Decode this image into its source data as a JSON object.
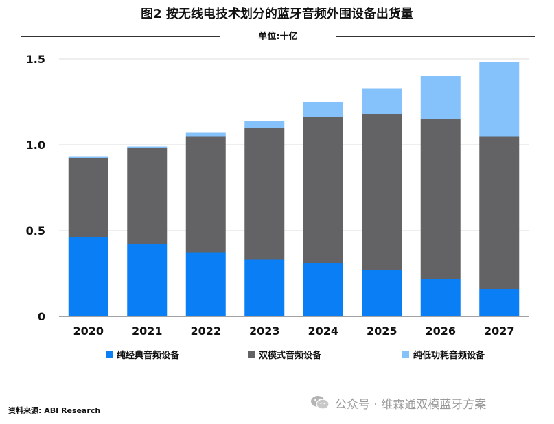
{
  "title": "图2 按无线电技术划分的蓝牙音频外围设备出货量",
  "unit": "单位:十亿",
  "source": "资料来源: ABI Research",
  "watermark": "公众号 · 维霖通双模蓝牙方案",
  "colors": {
    "series1": "#0a7ff5",
    "series2": "#636366",
    "series3": "#85c1fa",
    "grid": "#dcdcdc",
    "text": "#111111"
  },
  "chart_data": {
    "type": "bar",
    "stacked": true,
    "title": "图2 按无线电技术划分的蓝牙音频外围设备出货量",
    "ylabel": "单位:十亿",
    "xlabel": "",
    "ylim": [
      0,
      1.5
    ],
    "yticks": [
      0,
      0.5,
      1.0,
      1.5
    ],
    "ytick_labels": [
      "0",
      "0.5",
      "1.0",
      "1.5"
    ],
    "grid": true,
    "legend_position": "bottom",
    "categories": [
      "2020",
      "2021",
      "2022",
      "2023",
      "2024",
      "2025",
      "2026",
      "2027"
    ],
    "series": [
      {
        "name": "纯经典音频设备",
        "color": "#0a7ff5",
        "values": [
          0.46,
          0.42,
          0.37,
          0.33,
          0.31,
          0.27,
          0.22,
          0.16
        ]
      },
      {
        "name": "双模式音频设备",
        "color": "#636366",
        "values": [
          0.46,
          0.56,
          0.68,
          0.77,
          0.85,
          0.91,
          0.93,
          0.89
        ]
      },
      {
        "name": "纯低功耗音频设备",
        "color": "#85c1fa",
        "values": [
          0.01,
          0.01,
          0.02,
          0.04,
          0.09,
          0.15,
          0.25,
          0.43
        ]
      }
    ]
  }
}
